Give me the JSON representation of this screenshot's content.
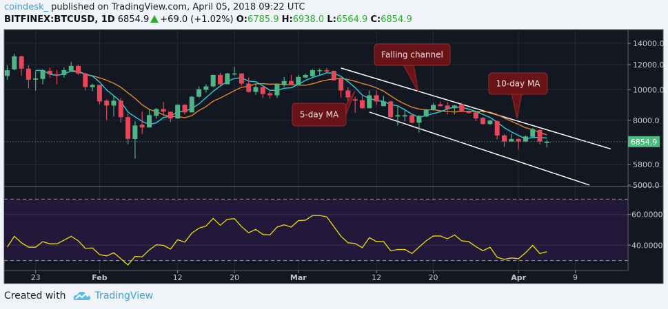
{
  "header": {
    "author": "coindesk_",
    "published": "published on TradingView.com, April 05, 2018 09:22 UTC",
    "symbol": "BITFINEX:BTCUSD, 1D",
    "last": "6854.9",
    "change": "+69.0 (+1.02%)",
    "o_label": "O:",
    "o": "6785.9",
    "h_label": "H:",
    "h": "6938.0",
    "l_label": "L:",
    "l": "6564.9",
    "c_label": "C:",
    "c": "6854.9"
  },
  "footer": {
    "created_with": "Created with",
    "brand": "TradingView"
  },
  "colors": {
    "up": "#4fb587",
    "down": "#e8475a",
    "ma5": "#22d3e0",
    "ma10": "#e0892a",
    "rsi": "#f0dc0a",
    "bg": "#131722",
    "rsi_band": "#21183a",
    "price_tag": "#4cbb7d"
  },
  "chart_data": {
    "type": "candlestick",
    "title": "BITFINEX:BTCUSD, 1D",
    "y_scale": "log",
    "ylim": [
      4900,
      14300
    ],
    "price_ticks": [
      "14000.0",
      "12000.0",
      "10000.0",
      "8000.0",
      "5800.0",
      "5000.0"
    ],
    "price_tick_values": [
      14000,
      12000,
      10000,
      8000,
      5800,
      5000
    ],
    "last_price_label": "6854.9",
    "x_ticks": [
      {
        "label": "23",
        "day_index": 4,
        "bold": false
      },
      {
        "label": "Feb",
        "day_index": 13,
        "bold": true
      },
      {
        "label": "12",
        "day_index": 24,
        "bold": false
      },
      {
        "label": "20",
        "day_index": 32,
        "bold": false
      },
      {
        "label": "Mar",
        "day_index": 41,
        "bold": true
      },
      {
        "label": "12",
        "day_index": 52,
        "bold": false
      },
      {
        "label": "20",
        "day_index": 60,
        "bold": false
      },
      {
        "label": "Apr",
        "day_index": 72,
        "bold": true
      },
      {
        "label": "9",
        "day_index": 80,
        "bold": false
      }
    ],
    "dates_start": "2018-01-19",
    "ohlc": [
      [
        11050,
        11940,
        10740,
        11520
      ],
      [
        11590,
        13000,
        11500,
        12740
      ],
      [
        12740,
        12800,
        11080,
        11650
      ],
      [
        11650,
        11940,
        10090,
        10750
      ],
      [
        10750,
        11470,
        9940,
        10850
      ],
      [
        10810,
        11600,
        10390,
        11520
      ],
      [
        11470,
        11760,
        10920,
        11190
      ],
      [
        11190,
        11520,
        10400,
        11080
      ],
      [
        11130,
        11750,
        10920,
        11520
      ],
      [
        11470,
        12240,
        11400,
        11880
      ],
      [
        11880,
        12000,
        11140,
        11250
      ],
      [
        11250,
        11300,
        9940,
        10190
      ],
      [
        10190,
        10450,
        9880,
        10350
      ],
      [
        10350,
        10350,
        8990,
        9180
      ],
      [
        9230,
        9320,
        8030,
        8910
      ],
      [
        8910,
        9550,
        8230,
        9230
      ],
      [
        9230,
        9410,
        7870,
        8190
      ],
      [
        8190,
        8400,
        6720,
        6990
      ],
      [
        6990,
        7950,
        6060,
        7710
      ],
      [
        7750,
        8520,
        7240,
        7600
      ],
      [
        7600,
        8650,
        7600,
        8310
      ],
      [
        8270,
        8740,
        8100,
        8690
      ],
      [
        8690,
        9140,
        8230,
        8520
      ],
      [
        8520,
        8520,
        7910,
        8110
      ],
      [
        8110,
        9000,
        8110,
        8960
      ],
      [
        8960,
        9000,
        8360,
        8480
      ],
      [
        8480,
        9550,
        8480,
        9500
      ],
      [
        9500,
        10240,
        9450,
        10040
      ],
      [
        9990,
        10400,
        9790,
        10240
      ],
      [
        10240,
        11130,
        10190,
        11130
      ],
      [
        11130,
        11300,
        10240,
        10400
      ],
      [
        10400,
        11300,
        10400,
        11250
      ],
      [
        11190,
        11810,
        11080,
        11250
      ],
      [
        11250,
        11250,
        10290,
        10450
      ],
      [
        10450,
        10920,
        9790,
        9840
      ],
      [
        9840,
        10400,
        9640,
        10190
      ],
      [
        10190,
        10350,
        9410,
        9690
      ],
      [
        9740,
        9890,
        9370,
        9600
      ],
      [
        9600,
        10450,
        9410,
        10400
      ],
      [
        10350,
        10970,
        10190,
        10650
      ],
      [
        10650,
        11130,
        10350,
        10350
      ],
      [
        10350,
        11130,
        10350,
        10970
      ],
      [
        10920,
        11250,
        10870,
        11130
      ],
      [
        11030,
        11600,
        10970,
        11520
      ],
      [
        11470,
        11650,
        11080,
        11520
      ],
      [
        11520,
        11700,
        11360,
        11410
      ],
      [
        11470,
        11470,
        10700,
        10700
      ],
      [
        10810,
        10970,
        9450,
        9940
      ],
      [
        9940,
        10190,
        9180,
        9450
      ],
      [
        9320,
        9500,
        8440,
        9230
      ],
      [
        9270,
        9550,
        8700,
        8740
      ],
      [
        8740,
        9940,
        8740,
        9600
      ],
      [
        9600,
        9940,
        8950,
        9180
      ],
      [
        8870,
        9550,
        8870,
        9180
      ],
      [
        9180,
        9230,
        8150,
        8190
      ],
      [
        8230,
        8870,
        7710,
        8310
      ],
      [
        8230,
        8700,
        7950,
        8310
      ],
      [
        8310,
        8400,
        7830,
        7870
      ],
      [
        7870,
        8310,
        7320,
        8270
      ],
      [
        8230,
        8700,
        8190,
        8650
      ],
      [
        8650,
        9090,
        8600,
        8950
      ],
      [
        8990,
        9180,
        8870,
        8870
      ],
      [
        8910,
        9140,
        8360,
        8700
      ],
      [
        8740,
        8950,
        8360,
        8910
      ],
      [
        8990,
        9090,
        8480,
        8520
      ],
      [
        8520,
        8600,
        8400,
        8440
      ],
      [
        8480,
        8520,
        7950,
        8110
      ],
      [
        8150,
        8190,
        7750,
        7790
      ],
      [
        7790,
        8030,
        7750,
        7990
      ],
      [
        7950,
        7990,
        6960,
        7170
      ],
      [
        7170,
        7240,
        6590,
        6860
      ],
      [
        6860,
        7240,
        6860,
        6990
      ],
      [
        6990,
        7030,
        6490,
        6860
      ],
      [
        6860,
        7170,
        6820,
        7120
      ],
      [
        7100,
        7570,
        7060,
        7500
      ],
      [
        7460,
        7500,
        6720,
        6860
      ],
      [
        6786,
        6938,
        6565,
        6855
      ]
    ],
    "overlays": [
      {
        "name": "5-day MA",
        "period": 5
      },
      {
        "name": "10-day MA",
        "period": 10
      }
    ],
    "annotations": [
      {
        "text": "Falling channel"
      },
      {
        "text": "5-day MA"
      },
      {
        "text": "10-day MA"
      }
    ],
    "channel": {
      "upper": [
        [
          47,
          11700
        ],
        [
          85,
          6500
        ]
      ],
      "lower": [
        [
          51,
          8500
        ],
        [
          82,
          5000
        ]
      ]
    },
    "rsi": {
      "ticks": [
        "60.0000",
        "40.0000"
      ],
      "tick_values": [
        60,
        40
      ],
      "bands": [
        70,
        30
      ],
      "values": [
        38.8,
        45.8,
        41.6,
        38.7,
        38.7,
        42.3,
        40.9,
        40.9,
        43.3,
        45.8,
        42.9,
        37.9,
        38.2,
        33.9,
        33.0,
        35.1,
        31.2,
        27.1,
        32.7,
        32.4,
        36.9,
        40.3,
        39.9,
        37.5,
        43.6,
        42.0,
        47.9,
        51.1,
        52.5,
        57.5,
        53.0,
        56.9,
        57.3,
        52.1,
        48.1,
        50.3,
        47.0,
        46.7,
        51.8,
        53.3,
        51.8,
        56.0,
        56.3,
        59.3,
        59.3,
        58.5,
        52.1,
        45.8,
        41.6,
        41.1,
        38.4,
        44.9,
        42.4,
        42.4,
        36.4,
        37.2,
        37.2,
        34.6,
        38.8,
        42.9,
        46.0,
        46.0,
        44.2,
        46.7,
        42.9,
        42.3,
        39.1,
        36.4,
        38.7,
        32.1,
        30.8,
        31.7,
        31.2,
        35.1,
        39.9,
        34.6,
        35.7
      ]
    }
  }
}
